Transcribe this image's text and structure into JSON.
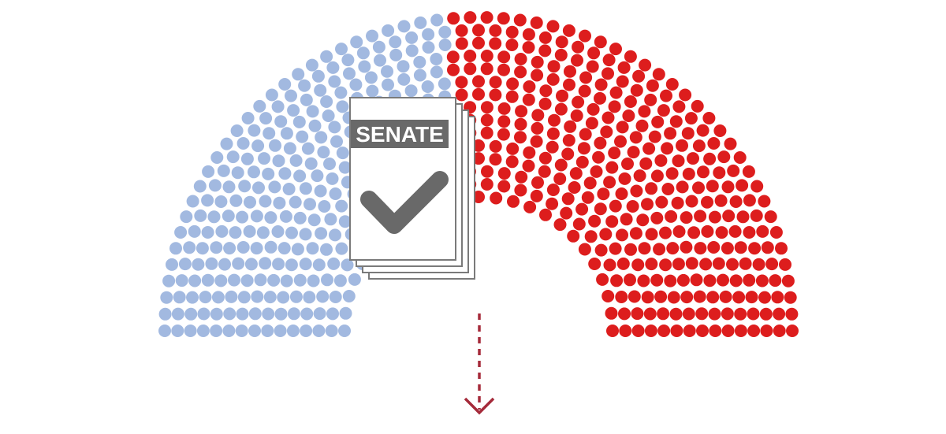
{
  "diagram": {
    "chamber": {
      "left_color": "#a2b9e0",
      "right_color": "#dd1d1d",
      "rows": 15,
      "boundary_angle_deg": 96
    },
    "document": {
      "label": "SENATE",
      "label_bg": "#696969",
      "label_color": "#ffffff",
      "check_color": "#696969",
      "paper_color": "#ffffff",
      "border_color": "#7a7a7a",
      "stack_count": 4
    },
    "arrow": {
      "color": "#a52a3a",
      "style": "dashed",
      "direction": "down"
    }
  }
}
